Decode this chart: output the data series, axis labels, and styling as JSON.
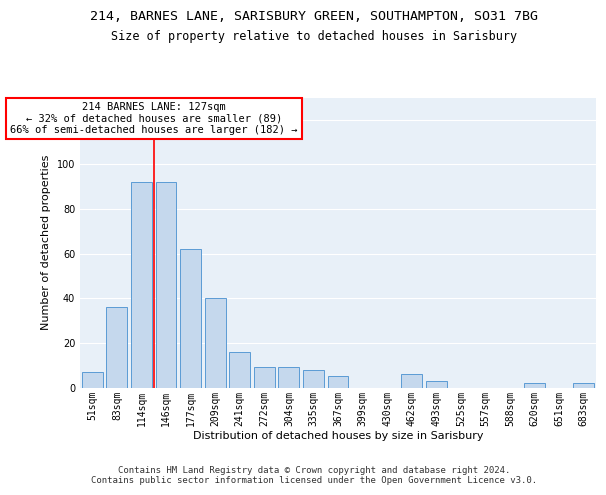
{
  "title_line1": "214, BARNES LANE, SARISBURY GREEN, SOUTHAMPTON, SO31 7BG",
  "title_line2": "Size of property relative to detached houses in Sarisbury",
  "xlabel": "Distribution of detached houses by size in Sarisbury",
  "ylabel": "Number of detached properties",
  "bar_color": "#c5d8ed",
  "bar_edge_color": "#5b9bd5",
  "categories": [
    "51sqm",
    "83sqm",
    "114sqm",
    "146sqm",
    "177sqm",
    "209sqm",
    "241sqm",
    "272sqm",
    "304sqm",
    "335sqm",
    "367sqm",
    "399sqm",
    "430sqm",
    "462sqm",
    "493sqm",
    "525sqm",
    "557sqm",
    "588sqm",
    "620sqm",
    "651sqm",
    "683sqm"
  ],
  "values": [
    7,
    36,
    92,
    92,
    62,
    40,
    16,
    9,
    9,
    8,
    5,
    0,
    0,
    6,
    3,
    0,
    0,
    0,
    2,
    0,
    2
  ],
  "ylim": [
    0,
    130
  ],
  "yticks": [
    0,
    20,
    40,
    60,
    80,
    100,
    120
  ],
  "vline_x": 2.5,
  "annotation_text": "214 BARNES LANE: 127sqm\n← 32% of detached houses are smaller (89)\n66% of semi-detached houses are larger (182) →",
  "annotation_box_color": "white",
  "annotation_box_edge_color": "red",
  "vline_color": "red",
  "background_color": "#e8f0f8",
  "footer_text": "Contains HM Land Registry data © Crown copyright and database right 2024.\nContains public sector information licensed under the Open Government Licence v3.0.",
  "title_fontsize": 9.5,
  "subtitle_fontsize": 8.5,
  "axis_label_fontsize": 8,
  "tick_fontsize": 7,
  "annotation_fontsize": 7.5,
  "footer_fontsize": 6.5
}
